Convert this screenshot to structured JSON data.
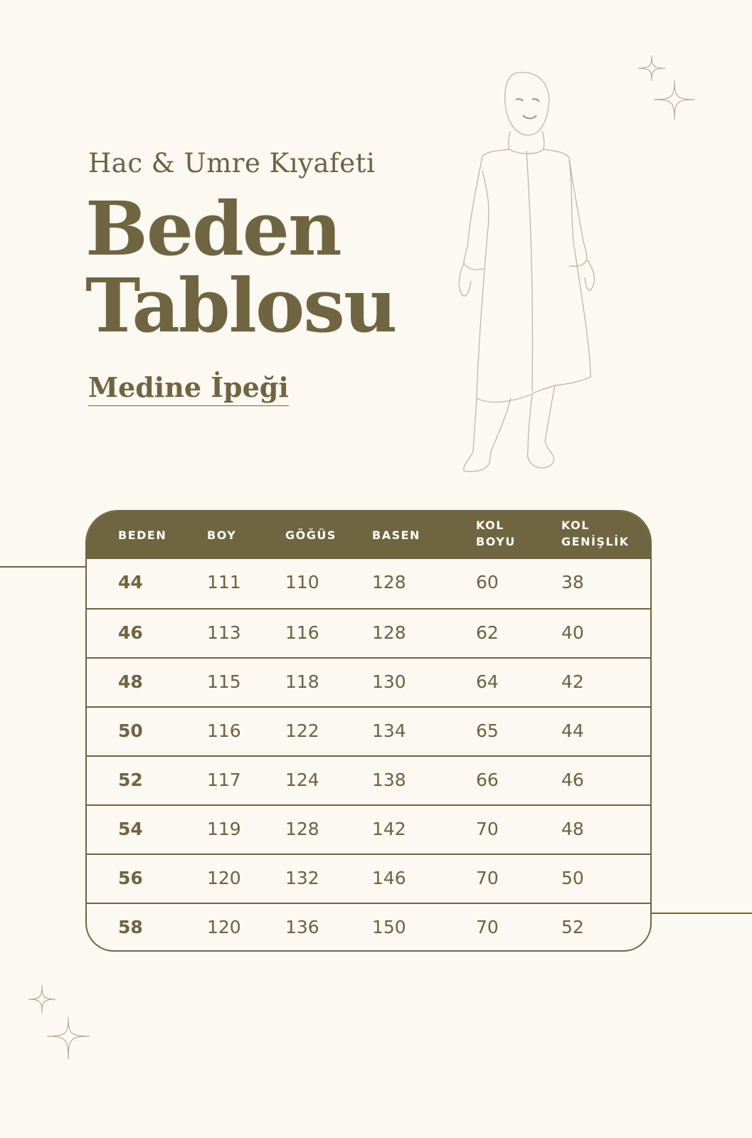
{
  "header": {
    "subtitle": "Hac & Umre Kıyafeti",
    "title_line1": "Beden",
    "title_line2": "Tablosu",
    "fabric": "Medine İpeği"
  },
  "colors": {
    "accent": "#6f6540",
    "background": "#fcf8f2",
    "header_text": "#ffffff"
  },
  "illustration": "woman-in-hijab-and-tunic-line-drawing",
  "table": {
    "columns": [
      {
        "line1": "BEDEN",
        "line2": ""
      },
      {
        "line1": "BOY",
        "line2": ""
      },
      {
        "line1": "GÖĞÜS",
        "line2": ""
      },
      {
        "line1": "BASEN",
        "line2": ""
      },
      {
        "line1": "KOL",
        "line2": "BOYU"
      },
      {
        "line1": "KOL",
        "line2": "GENİŞLİK"
      }
    ],
    "rows": [
      [
        "44",
        "111",
        "110",
        "128",
        "60",
        "38"
      ],
      [
        "46",
        "113",
        "116",
        "128",
        "62",
        "40"
      ],
      [
        "48",
        "115",
        "118",
        "130",
        "64",
        "42"
      ],
      [
        "50",
        "116",
        "122",
        "134",
        "65",
        "44"
      ],
      [
        "52",
        "117",
        "124",
        "138",
        "66",
        "46"
      ],
      [
        "54",
        "119",
        "128",
        "142",
        "70",
        "48"
      ],
      [
        "56",
        "120",
        "132",
        "146",
        "70",
        "50"
      ],
      [
        "58",
        "120",
        "136",
        "150",
        "70",
        "52"
      ]
    ]
  }
}
